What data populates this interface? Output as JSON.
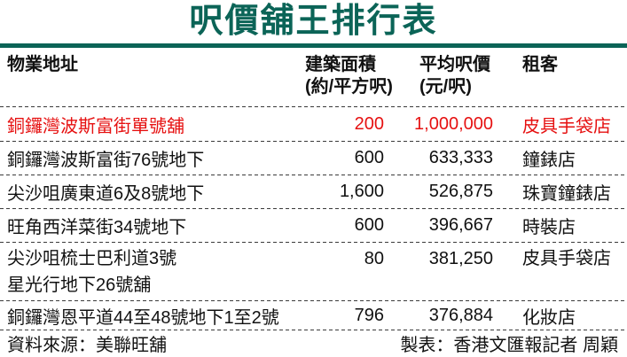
{
  "title": "呎價舖王排行表",
  "colors": {
    "accent_teal": "#0b6457",
    "highlight_red": "#e61111",
    "text": "#111111"
  },
  "table": {
    "headers": {
      "address": "物業地址",
      "area": "建築面積",
      "area_unit": "(約/平方呎)",
      "price": "平均呎價",
      "price_unit": "(元/呎)",
      "tenant": "租客"
    },
    "rows": [
      {
        "address": "銅鑼灣波斯富街單號舖",
        "area": "200",
        "price": "1,000,000",
        "tenant": "皮具手袋店",
        "highlight": true
      },
      {
        "address": "銅鑼灣波斯富街76號地下",
        "area": "600",
        "price": "633,333",
        "tenant": "鐘錶店",
        "highlight": false
      },
      {
        "address": "尖沙咀廣東道6及8號地下",
        "area": "1,600",
        "price": "526,875",
        "tenant": "珠寶鐘錶店",
        "highlight": false
      },
      {
        "address": "旺角西洋菜街34號地下",
        "area": "600",
        "price": "396,667",
        "tenant": "時裝店",
        "highlight": false
      },
      {
        "address": "尖沙咀梳士巴利道3號\n星光行地下26號舖",
        "area": "80",
        "price": "381,250",
        "tenant": "皮具手袋店",
        "highlight": false
      },
      {
        "address": "銅鑼灣恩平道44至48號地下1至2號",
        "area": "796",
        "price": "376,884",
        "tenant": "化妝店",
        "highlight": false
      }
    ]
  },
  "footer": {
    "source": "資料來源：美聯旺舖",
    "credit": "製表：香港文匯報記者 周穎"
  },
  "chart_data": {
    "type": "table",
    "title": "呎價舖王排行表",
    "columns": [
      "物業地址",
      "建築面積(約/平方呎)",
      "平均呎價(元/呎)",
      "租客"
    ],
    "rows": [
      [
        "銅鑼灣波斯富街單號舖",
        200,
        1000000,
        "皮具手袋店"
      ],
      [
        "銅鑼灣波斯富街76號地下",
        600,
        633333,
        "鐘錶店"
      ],
      [
        "尖沙咀廣東道6及8號地下",
        1600,
        526875,
        "珠寶鐘錶店"
      ],
      [
        "旺角西洋菜街34號地下",
        600,
        396667,
        "時裝店"
      ],
      [
        "尖沙咀梳士巴利道3號星光行地下26號舖",
        80,
        381250,
        "皮具手袋店"
      ],
      [
        "銅鑼灣恩平道44至48號地下1至2號",
        796,
        376884,
        "化妝店"
      ]
    ],
    "highlight_row_index": 0,
    "source": "資料來源：美聯旺舖",
    "credit": "製表：香港文匯報記者 周穎"
  }
}
